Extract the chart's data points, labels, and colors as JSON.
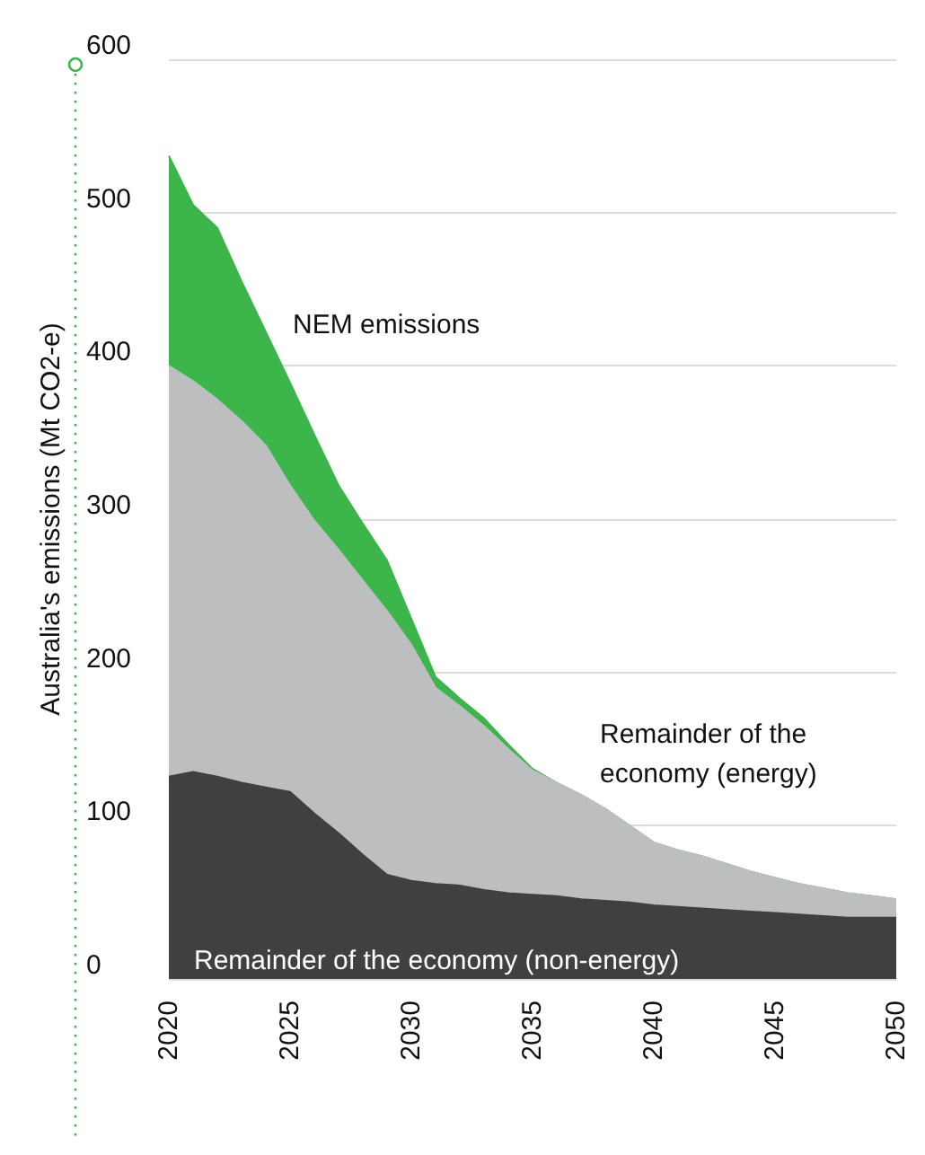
{
  "chart_data": {
    "type": "area",
    "stacked": true,
    "ylabel": "Australia's emissions (Mt CO2-e)",
    "x": [
      2020,
      2021,
      2022,
      2023,
      2024,
      2025,
      2026,
      2027,
      2028,
      2029,
      2030,
      2031,
      2032,
      2033,
      2034,
      2035,
      2036,
      2037,
      2038,
      2039,
      2040,
      2041,
      2042,
      2043,
      2044,
      2045,
      2046,
      2047,
      2048,
      2049,
      2050
    ],
    "series": [
      {
        "name": "Remainder of the economy (non-energy)",
        "color": "#404042",
        "values": [
          132,
          135,
          132,
          128,
          125,
          122,
          108,
          95,
          81,
          68,
          64,
          62,
          61,
          58,
          56,
          55,
          54,
          52,
          51,
          50,
          48,
          47,
          46,
          45,
          44,
          43,
          42,
          41,
          40,
          40,
          40
        ]
      },
      {
        "name": "Remainder of the economy (energy)",
        "color": "#bdbec0",
        "values": [
          268,
          255,
          246,
          236,
          223,
          200,
          191,
          185,
          179,
          172,
          154,
          128,
          117,
          107,
          94,
          81,
          74,
          68,
          60,
          50,
          41,
          37,
          34,
          30,
          26,
          23,
          20,
          18,
          16,
          14,
          12
        ]
      },
      {
        "name": "NEM emissions",
        "color": "#3cb54a",
        "values": [
          137,
          115,
          112,
          91,
          74,
          67,
          56,
          42,
          37,
          33,
          17,
          7,
          5,
          5,
          3,
          1,
          0,
          0,
          0,
          0,
          0,
          0,
          0,
          0,
          0,
          0,
          0,
          0,
          0,
          0,
          0
        ]
      }
    ],
    "xlim": [
      2020,
      2050
    ],
    "xticks": [
      2020,
      2025,
      2030,
      2035,
      2040,
      2045,
      2050
    ],
    "ylim": [
      0,
      600
    ],
    "yticks": [
      0,
      100,
      200,
      300,
      400,
      500,
      600
    ],
    "grid": "y",
    "legend": false
  }
}
